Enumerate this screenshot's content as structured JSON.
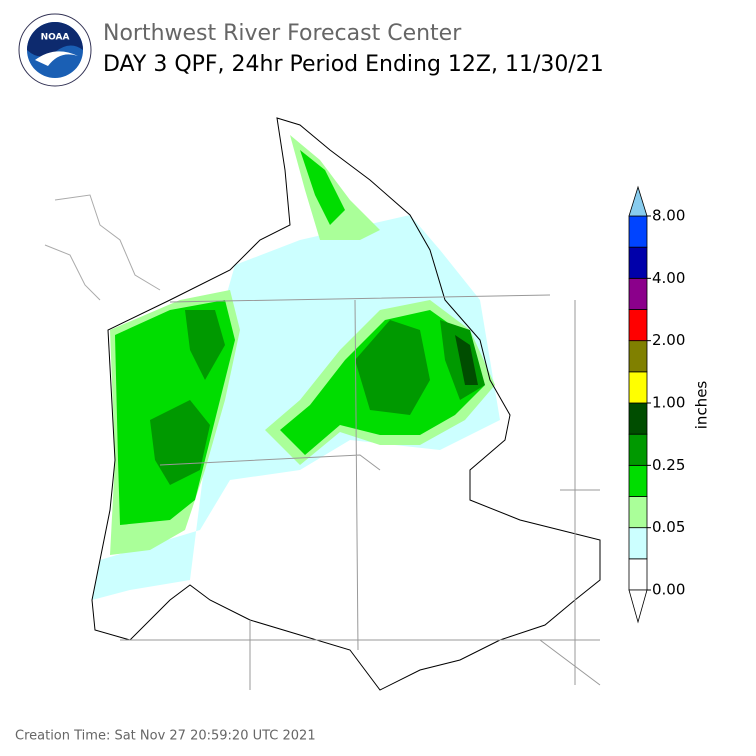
{
  "header": {
    "title": "Northwest River Forecast Center",
    "subtitle": "DAY 3 QPF, 24hr Period Ending 12Z, 11/30/21"
  },
  "colorbar": {
    "label": "inches",
    "colors": [
      "#ffffff",
      "#ccffff",
      "#aaff99",
      "#00dd00",
      "#009900",
      "#004d00",
      "#ffff00",
      "#808000",
      "#ff0000",
      "#8b008b",
      "#0000aa",
      "#0044ff"
    ],
    "over_color": "#88ccee",
    "under_color": "#ffffff",
    "ticks": [
      {
        "value": 0,
        "label": "0.00"
      },
      {
        "value": 0.05,
        "label": "0.05"
      },
      {
        "value": 0.25,
        "label": "0.25"
      },
      {
        "value": 1,
        "label": "1.00"
      },
      {
        "value": 2,
        "label": "2.00"
      },
      {
        "value": 4,
        "label": "4.00"
      },
      {
        "value": 8,
        "label": "8.00"
      }
    ]
  },
  "footer": "Creation Time: Sat Nov 27 20:59:20 UTC 2021"
}
